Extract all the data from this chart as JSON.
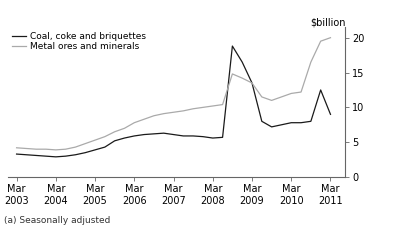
{
  "coal_x": [
    2003.17,
    2003.42,
    2003.67,
    2003.92,
    2004.17,
    2004.42,
    2004.67,
    2004.92,
    2005.17,
    2005.42,
    2005.67,
    2005.92,
    2006.17,
    2006.42,
    2006.67,
    2006.92,
    2007.17,
    2007.42,
    2007.67,
    2007.92,
    2008.17,
    2008.42,
    2008.67,
    2008.92,
    2009.17,
    2009.42,
    2009.67,
    2009.92,
    2010.17,
    2010.42,
    2010.67,
    2010.92,
    2011.17
  ],
  "coal_y": [
    3.3,
    3.2,
    3.1,
    3.0,
    2.9,
    3.0,
    3.2,
    3.5,
    3.9,
    4.3,
    5.2,
    5.6,
    5.9,
    6.1,
    6.2,
    6.3,
    6.1,
    5.9,
    5.9,
    5.8,
    5.6,
    5.7,
    18.8,
    16.5,
    13.5,
    8.0,
    7.2,
    7.5,
    7.8,
    7.8,
    8.0,
    12.5,
    9.0
  ],
  "metal_x": [
    2003.17,
    2003.42,
    2003.67,
    2003.92,
    2004.17,
    2004.42,
    2004.67,
    2004.92,
    2005.17,
    2005.42,
    2005.67,
    2005.92,
    2006.17,
    2006.42,
    2006.67,
    2006.92,
    2007.17,
    2007.42,
    2007.67,
    2007.92,
    2008.17,
    2008.42,
    2008.67,
    2008.92,
    2009.17,
    2009.42,
    2009.67,
    2009.92,
    2010.17,
    2010.42,
    2010.67,
    2010.92,
    2011.17
  ],
  "metal_y": [
    4.2,
    4.1,
    4.0,
    4.0,
    3.9,
    4.0,
    4.3,
    4.8,
    5.3,
    5.8,
    6.5,
    7.0,
    7.8,
    8.3,
    8.8,
    9.1,
    9.3,
    9.5,
    9.8,
    10.0,
    10.2,
    10.4,
    14.8,
    14.2,
    13.5,
    11.5,
    11.0,
    11.5,
    12.0,
    12.2,
    16.5,
    19.5,
    20.0
  ],
  "coal_color": "#1a1a1a",
  "metal_color": "#aaaaaa",
  "coal_label": "Coal, coke and briquettes",
  "metal_label": "Metal ores and minerals",
  "ylabel": "$billion",
  "footnote": "(a) Seasonally adjusted",
  "yticks": [
    0,
    5,
    10,
    15,
    20
  ],
  "xtick_years": [
    2003,
    2004,
    2005,
    2006,
    2007,
    2008,
    2009,
    2010,
    2011
  ],
  "ylim": [
    0,
    21.5
  ],
  "xlim": [
    2002.95,
    2011.55
  ]
}
